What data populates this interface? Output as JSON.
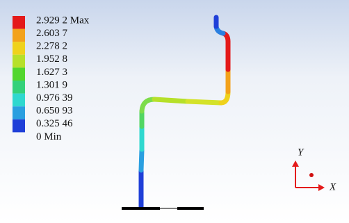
{
  "legend": {
    "labels": [
      "2.929 2 Max",
      "2.603 7",
      "2.278 2",
      "1.952 8",
      "1.627 3",
      "1.301 9",
      "0.976 39",
      "0.650 93",
      "0.325 46",
      "0 Min"
    ],
    "colors": [
      "#e41a1a",
      "#f3a21b",
      "#efd21c",
      "#b6e02a",
      "#52d62e",
      "#33d17a",
      "#2fd8cf",
      "#2a9fe0",
      "#1f3fd8"
    ]
  },
  "triad": {
    "y_label": "Y",
    "x_label": "X"
  }
}
